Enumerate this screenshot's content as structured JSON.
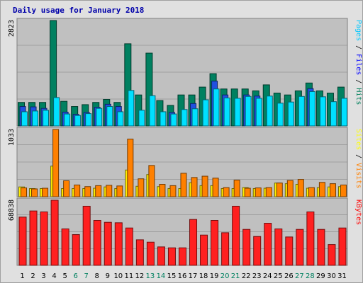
{
  "chart_data": {
    "type": "bar",
    "title": "Daily usage for January 2018",
    "categories": [
      "1",
      "2",
      "3",
      "4",
      "5",
      "6",
      "7",
      "8",
      "9",
      "10",
      "11",
      "12",
      "13",
      "14",
      "15",
      "16",
      "17",
      "18",
      "19",
      "20",
      "21",
      "22",
      "23",
      "24",
      "25",
      "26",
      "27",
      "28",
      "29",
      "30",
      "31"
    ],
    "weekend_days": [
      "6",
      "7",
      "13",
      "14",
      "20",
      "21",
      "27",
      "28"
    ],
    "panels": [
      {
        "name": "hits-files-pages",
        "ymax_label": "2823",
        "ymax": 2823,
        "legend": [
          {
            "text": "Hits",
            "color": "#00805c"
          },
          {
            "text": "Files",
            "color": "#0000ff"
          },
          {
            "text": "Pages",
            "color": "#00c8ff"
          }
        ],
        "series": [
          {
            "name": "Hits",
            "color": "#008060",
            "values": [
              630,
              630,
              630,
              2823,
              660,
              520,
              570,
              630,
              710,
              630,
              2200,
              830,
              1950,
              680,
              550,
              830,
              830,
              1040,
              1400,
              990,
              990,
              990,
              940,
              1100,
              880,
              830,
              940,
              1150,
              940,
              880,
              1040
            ]
          },
          {
            "name": "Files",
            "color": "#2050e0",
            "values": [
              520,
              510,
              470,
              0,
              370,
              310,
              360,
              500,
              580,
              520,
              0,
              0,
              0,
              0,
              360,
              0,
              600,
              0,
              1200,
              830,
              0,
              830,
              800,
              0,
              0,
              0,
              0,
              1000,
              0,
              0,
              0
            ]
          },
          {
            "name": "Pages",
            "color": "#00e0ff",
            "values": [
              380,
              400,
              420,
              760,
              320,
              280,
              330,
              470,
              520,
              380,
              950,
              420,
              810,
              380,
              320,
              440,
              460,
              700,
              990,
              750,
              740,
              790,
              740,
              800,
              610,
              640,
              790,
              920,
              780,
              650,
              740
            ]
          }
        ]
      },
      {
        "name": "visits-sites",
        "ymax_label": "1033",
        "ymax": 1033,
        "legend": [
          {
            "text": "Visits",
            "color": "#ff8000"
          },
          {
            "text": "Sites",
            "color": "#ffff00"
          }
        ],
        "series": [
          {
            "name": "Sites",
            "color": "#ffee00",
            "values": [
              150,
              125,
              125,
              470,
              125,
              125,
              125,
              130,
              150,
              125,
              410,
              160,
              340,
              155,
              125,
              125,
              215,
              170,
              170,
              125,
              125,
              140,
              125,
              130,
              210,
              200,
              190,
              130,
              140,
              150,
              155
            ]
          },
          {
            "name": "Visits",
            "color": "#ff8000",
            "values": [
              135,
              120,
              130,
              1033,
              245,
              180,
              155,
              170,
              175,
              165,
              885,
              275,
              480,
              190,
              170,
              360,
              295,
              315,
              285,
              140,
              255,
              130,
              135,
              140,
              210,
              250,
              265,
              140,
              220,
              200,
              180
            ]
          }
        ]
      },
      {
        "name": "kbytes",
        "ymax_label": "68838",
        "ymax": 68838,
        "legend": [
          {
            "text": "KBytes",
            "color": "#ff0000"
          }
        ],
        "series": [
          {
            "name": "KBytes",
            "color": "#ff2020",
            "values": [
              51000,
              57500,
              56500,
              68838,
              38500,
              32500,
              62500,
              47500,
              45500,
              45000,
              39500,
              27000,
              24500,
              19500,
              18500,
              18500,
              48500,
              32000,
              47500,
              34500,
              62500,
              38000,
              30500,
              44500,
              38500,
              30000,
              38000,
              56500,
              38000,
              22000,
              39500
            ]
          }
        ]
      }
    ]
  }
}
